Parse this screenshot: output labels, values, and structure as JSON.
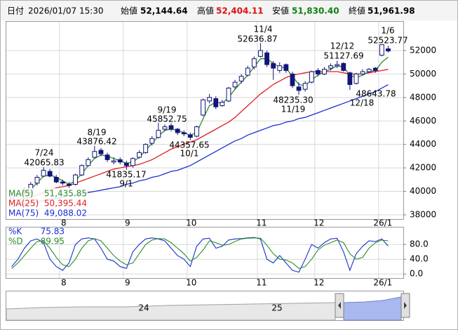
{
  "chart_data": {
    "type": "candlestick",
    "header": {
      "date_label": "日付",
      "date": "2026/01/07 15:30",
      "fields": [
        {
          "name": "始値",
          "value": "52,144.64",
          "color": "#000000"
        },
        {
          "name": "高値",
          "value": "52,404.11",
          "color": "#e01010"
        },
        {
          "name": "安値",
          "value": "51,830.40",
          "color": "#108010"
        },
        {
          "name": "終値",
          "value": "51,961.98",
          "color": "#000000"
        }
      ]
    },
    "categories": [
      null,
      null,
      null,
      null,
      null,
      null,
      null,
      null,
      "8",
      null,
      null,
      null,
      null,
      null,
      null,
      null,
      null,
      null,
      "9",
      null,
      null,
      null,
      null,
      null,
      null,
      null,
      null,
      null,
      "10",
      null,
      null,
      null,
      null,
      null,
      null,
      null,
      null,
      null,
      null,
      "11",
      null,
      null,
      null,
      null,
      null,
      null,
      null,
      null,
      "12",
      null,
      null,
      null,
      null,
      null,
      null,
      null,
      null,
      null,
      "26/1",
      null
    ],
    "ohlc": [
      [
        39400,
        39800,
        39300,
        39600
      ],
      [
        39600,
        40000,
        39500,
        39800
      ],
      [
        40100,
        40300,
        39700,
        39900
      ],
      [
        39900,
        40800,
        39800,
        40600
      ],
      [
        40700,
        41400,
        40500,
        41200
      ],
      [
        41300,
        42065.83,
        41200,
        41800
      ],
      [
        41700,
        41900,
        41200,
        41300
      ],
      [
        41200,
        41400,
        40700,
        40800
      ],
      [
        40800,
        41000,
        40500,
        40700
      ],
      [
        40600,
        40800,
        40300,
        40500
      ],
      [
        40600,
        41500,
        40500,
        41400
      ],
      [
        41400,
        42300,
        41300,
        42200
      ],
      [
        42200,
        42900,
        42100,
        42700
      ],
      [
        42900,
        43876.42,
        42800,
        43400
      ],
      [
        43500,
        43700,
        43000,
        43200
      ],
      [
        43100,
        43300,
        42500,
        42700
      ],
      [
        42500,
        42900,
        42300,
        42600
      ],
      [
        42700,
        42900,
        42300,
        42500
      ],
      [
        42400,
        42600,
        41835.17,
        42200
      ],
      [
        42200,
        42900,
        42000,
        42800
      ],
      [
        42900,
        43500,
        42800,
        43300
      ],
      [
        43300,
        44100,
        43200,
        44000
      ],
      [
        44100,
        44700,
        43900,
        44500
      ],
      [
        44600,
        45852.75,
        44500,
        45200
      ],
      [
        45300,
        45700,
        45100,
        45500
      ],
      [
        45600,
        45800,
        45100,
        45300
      ],
      [
        45300,
        45400,
        44800,
        45000
      ],
      [
        45000,
        45200,
        44700,
        44900
      ],
      [
        44800,
        45000,
        44357.65,
        44600
      ],
      [
        44700,
        45600,
        44600,
        45500
      ],
      [
        46500,
        47900,
        46400,
        47800
      ],
      [
        47700,
        48300,
        47500,
        48000
      ],
      [
        47900,
        48100,
        47000,
        47200
      ],
      [
        47300,
        47800,
        47200,
        47600
      ],
      [
        47700,
        48900,
        47600,
        48800
      ],
      [
        48900,
        49500,
        48700,
        49300
      ],
      [
        49400,
        50000,
        49200,
        49800
      ],
      [
        49900,
        50700,
        49800,
        50500
      ],
      [
        50600,
        51500,
        50400,
        51300
      ],
      [
        51500,
        52636.87,
        51400,
        52000
      ],
      [
        51800,
        52000,
        50600,
        50800
      ],
      [
        50900,
        51100,
        49500,
        50500
      ],
      [
        50300,
        51000,
        50100,
        50700
      ],
      [
        50800,
        50900,
        50100,
        50300
      ],
      [
        50000,
        50200,
        48800,
        49000
      ],
      [
        48900,
        49300,
        48235.3,
        48600
      ],
      [
        48700,
        49400,
        48500,
        49200
      ],
      [
        49300,
        50300,
        49200,
        50200
      ],
      [
        50300,
        50500,
        49800,
        50000
      ],
      [
        50000,
        50600,
        49900,
        50400
      ],
      [
        50500,
        50900,
        50300,
        50700
      ],
      [
        50700,
        51127.69,
        50500,
        50800
      ],
      [
        50900,
        51000,
        50200,
        50300
      ],
      [
        50100,
        50200,
        48643.78,
        49100
      ],
      [
        49200,
        50100,
        49100,
        50000
      ],
      [
        50000,
        50400,
        49900,
        50200
      ],
      [
        50200,
        50500,
        50100,
        50400
      ],
      [
        50500,
        50600,
        50100,
        50300
      ],
      [
        51600,
        52523.77,
        51500,
        52500
      ],
      [
        52144.64,
        52404.11,
        51830.4,
        51961.98
      ]
    ],
    "up_color": "#ffffff",
    "down_color": "#14147a",
    "ma": [
      {
        "name": "MA(5)",
        "color": "#2c8c2c",
        "value_label": "51,435.85",
        "values": [
          39500,
          39700,
          39800,
          40200,
          40700,
          41300,
          41400,
          41200,
          40900,
          40600,
          40900,
          41500,
          42200,
          42800,
          43100,
          43000,
          42800,
          42600,
          42400,
          42500,
          42900,
          43500,
          44100,
          44700,
          45200,
          45300,
          45200,
          45000,
          44800,
          45000,
          46200,
          47300,
          47600,
          47500,
          48000,
          48700,
          49300,
          49900,
          50600,
          51300,
          51300,
          50900,
          50600,
          50500,
          49800,
          49100,
          49000,
          49500,
          49900,
          50200,
          50400,
          50700,
          50600,
          49900,
          49700,
          49900,
          50200,
          50300,
          51000,
          51435.85
        ]
      },
      {
        "name": "MA(25)",
        "color": "#e02020",
        "value_label": "50,395.44",
        "values": [
          39200,
          39300,
          39400,
          39500,
          39700,
          39900,
          40100,
          40300,
          40400,
          40500,
          40700,
          40900,
          41100,
          41300,
          41500,
          41700,
          41900,
          42000,
          42100,
          42200,
          42300,
          42500,
          42700,
          43000,
          43300,
          43600,
          43800,
          44000,
          44200,
          44400,
          44700,
          45000,
          45300,
          45600,
          45900,
          46300,
          46800,
          47300,
          47800,
          48300,
          48700,
          49100,
          49400,
          49700,
          49900,
          50000,
          50100,
          50200,
          50200,
          50200,
          50200,
          50200,
          50100,
          50000,
          50000,
          50000,
          50100,
          50200,
          50300,
          50395.44
        ]
      },
      {
        "name": "MA(75)",
        "color": "#1a2fd0",
        "value_label": "49,088.02",
        "values": [
          38700,
          38800,
          38900,
          39000,
          39100,
          39200,
          39300,
          39400,
          39500,
          39600,
          39700,
          39800,
          39900,
          40000,
          40100,
          40200,
          40300,
          40400,
          40600,
          40700,
          40900,
          41000,
          41200,
          41300,
          41500,
          41700,
          41800,
          42000,
          42200,
          42500,
          42800,
          43100,
          43400,
          43700,
          44000,
          44300,
          44500,
          44800,
          45000,
          45200,
          45400,
          45600,
          45700,
          45900,
          46000,
          46200,
          46300,
          46500,
          46700,
          46900,
          47100,
          47300,
          47500,
          47700,
          47900,
          48100,
          48300,
          48500,
          48800,
          49088.02
        ]
      }
    ],
    "ylim": [
      37640,
      54510
    ],
    "yticks": [
      38000,
      40000,
      42000,
      44000,
      46000,
      48000,
      50000,
      52000
    ],
    "grid": true,
    "annotations": [
      {
        "date": "7/24",
        "price": "42065.83"
      },
      {
        "date": "8/19",
        "price": "43876.42"
      },
      {
        "date": "9/1",
        "price": "41835.17"
      },
      {
        "date": "9/19",
        "price": "45852.75"
      },
      {
        "date": "10/1",
        "price": "44357.65"
      },
      {
        "date": "11/4",
        "price": "52636.87"
      },
      {
        "date": "11/19",
        "price": "48235.30"
      },
      {
        "date": "12/12",
        "price": "51127.69"
      },
      {
        "date": "12/18",
        "price": "48643.78"
      },
      {
        "date": "1/6",
        "price": "52523.77"
      }
    ],
    "stochastic": {
      "type": "line",
      "ylim": [
        -11,
        128
      ],
      "yticks": [
        {
          "value": 0,
          "label": "0.0"
        },
        {
          "value": 40,
          "label": "40.0"
        },
        {
          "value": 80,
          "label": "80.0"
        }
      ],
      "series": [
        {
          "name": "%K",
          "color": "#1a2fd0",
          "value_label": "75.83",
          "values": [
            20,
            40,
            70,
            90,
            95,
            85,
            40,
            20,
            10,
            30,
            80,
            95,
            98,
            95,
            70,
            40,
            35,
            20,
            15,
            60,
            80,
            95,
            98,
            95,
            90,
            70,
            50,
            40,
            20,
            75,
            95,
            97,
            70,
            75,
            92,
            95,
            96,
            98,
            99,
            95,
            40,
            30,
            50,
            30,
            10,
            5,
            40,
            80,
            70,
            85,
            95,
            97,
            60,
            10,
            55,
            75,
            90,
            88,
            95,
            75.83
          ]
        },
        {
          "name": "%D",
          "color": "#2c8c2c",
          "value_label": "89.95",
          "values": [
            15,
            30,
            50,
            70,
            88,
            90,
            70,
            45,
            25,
            20,
            40,
            70,
            90,
            96,
            90,
            70,
            50,
            35,
            25,
            30,
            55,
            80,
            92,
            96,
            95,
            85,
            70,
            55,
            35,
            45,
            65,
            90,
            85,
            78,
            80,
            88,
            95,
            97,
            98,
            97,
            78,
            55,
            40,
            38,
            30,
            15,
            20,
            40,
            65,
            78,
            85,
            92,
            85,
            55,
            40,
            45,
            70,
            85,
            92,
            89.95
          ]
        }
      ]
    },
    "navigator_labels": [
      "24",
      "25"
    ]
  }
}
